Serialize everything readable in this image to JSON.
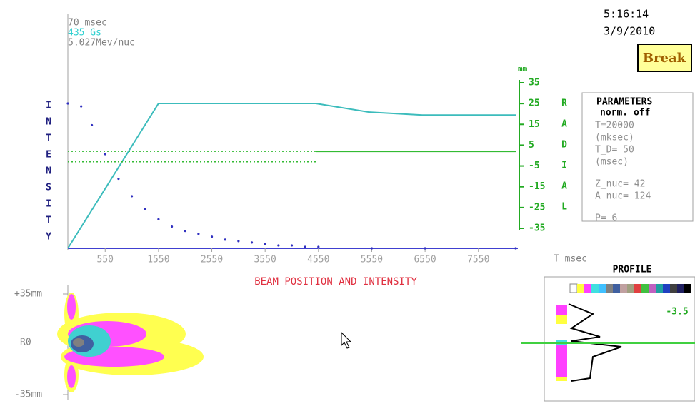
{
  "header": {
    "time_ms": "70 msec",
    "field": "435 Gs",
    "energy": "5.027Mev/nuc",
    "clock": "5:16:14",
    "date": "3/9/2010",
    "button": "Break"
  },
  "chart_data": {
    "type": "line",
    "title": "BEAM POSITION AND INTENSITY",
    "x_label": "T msec",
    "y_unit": "mm",
    "left_label": [
      "I",
      "N",
      "T",
      "E",
      "N",
      "S",
      "I",
      "T",
      "Y"
    ],
    "right_label": [
      "R",
      "A",
      "D",
      "I",
      "A",
      "L"
    ],
    "xlim": [
      -150,
      8250
    ],
    "xticks": [
      550,
      1550,
      2550,
      3550,
      4550,
      5550,
      6550,
      7550
    ],
    "ylim": [
      -35,
      35
    ],
    "yticks": [
      35,
      25,
      15,
      5,
      -5,
      -15,
      -25,
      -35
    ],
    "intensity_lim": [
      0,
      100
    ],
    "series": [
      {
        "axis": "intensity",
        "style": "line",
        "color": "#3cbcbc",
        "x": [
          -150,
          1550,
          1650,
          4500,
          5500,
          6500,
          8250
        ],
        "values": [
          0,
          100,
          100,
          100,
          94,
          92,
          92
        ]
      },
      {
        "axis": "intensity",
        "style": "dots",
        "color": "#3030c0",
        "x": [
          -150,
          100,
          300,
          550,
          800,
          1050,
          1300,
          1550,
          1800,
          2050,
          2300,
          2550,
          2800,
          3050,
          3300,
          3550,
          3800,
          4050,
          4300,
          4550,
          5550,
          6550,
          8250
        ],
        "values": [
          100,
          98,
          85,
          65,
          48,
          36,
          27,
          20,
          15,
          12,
          10,
          8,
          6,
          5,
          4,
          3,
          2,
          2,
          1,
          1,
          0,
          0,
          0
        ]
      },
      {
        "axis": "y",
        "style": "dotted",
        "color": "#33bb33",
        "x": [
          -150,
          4500
        ],
        "values": [
          2,
          2
        ]
      },
      {
        "axis": "y",
        "style": "dotted",
        "color": "#33bb33",
        "x": [
          -150,
          4500
        ],
        "values": [
          -3,
          -3
        ]
      },
      {
        "axis": "y",
        "style": "line",
        "color": "#33bb33",
        "x": [
          4500,
          8250
        ],
        "values": [
          2,
          2
        ]
      }
    ]
  },
  "parameters": {
    "title": "PARAMETERS",
    "mode": "norm. off",
    "lines": [
      "T=20000",
      "(mksec)",
      "T_D= 50",
      "(msec)",
      "Z_nuc= 42",
      "A_nuc= 124",
      "P=  6"
    ]
  },
  "profile": {
    "title": "PROFILE",
    "value": "-3.5"
  },
  "position_plot": {
    "top": "+35mm",
    "center": "R0",
    "bottom": "-35mm"
  }
}
